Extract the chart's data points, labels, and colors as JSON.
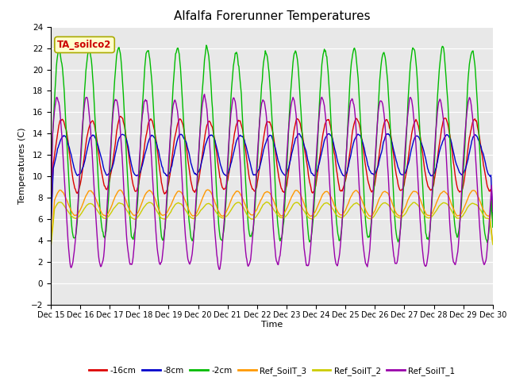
{
  "title": "Alfalfa Forerunner Temperatures",
  "xlabel": "Time",
  "ylabel": "Temperatures (C)",
  "ylim": [
    -2,
    24
  ],
  "yticks": [
    -2,
    0,
    2,
    4,
    6,
    8,
    10,
    12,
    14,
    16,
    18,
    20,
    22,
    24
  ],
  "xtick_labels": [
    "Dec 15",
    "Dec 16",
    "Dec 17",
    "Dec 18",
    "Dec 19",
    "Dec 20",
    "Dec 21",
    "Dec 22",
    "Dec 23",
    "Dec 24",
    "Dec 25",
    "Dec 26",
    "Dec 27",
    "Dec 28",
    "Dec 29",
    "Dec 30"
  ],
  "series": [
    {
      "label": "-16cm",
      "color": "#dd0000"
    },
    {
      "label": "-8cm",
      "color": "#0000cc"
    },
    {
      "label": "-2cm",
      "color": "#00bb00"
    },
    {
      "label": "Ref_SoilT_3",
      "color": "#ff9900"
    },
    {
      "label": "Ref_SoilT_2",
      "color": "#cccc00"
    },
    {
      "label": "Ref_SoilT_1",
      "color": "#9900aa"
    }
  ],
  "annotation_text": "TA_soilco2",
  "annotation_color": "#cc0000",
  "annotation_bg": "#ffffcc",
  "annotation_edge": "#aaaa00",
  "plot_bg": "#e8e8e8",
  "grid_color": "#ffffff",
  "title_fontsize": 11,
  "n_points": 720
}
